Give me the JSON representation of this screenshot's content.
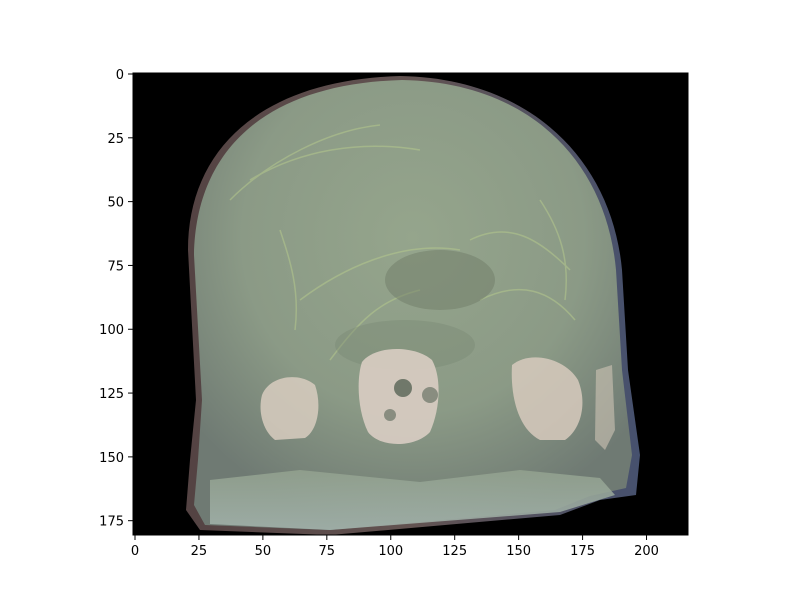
{
  "image": {
    "description_name": "volume-rendered-head-ct",
    "background_color": "#000000",
    "tissue_color": "#8d9a86",
    "bone_color": "#d6cbbf"
  },
  "axes": {
    "x_ticks": [
      "0",
      "25",
      "50",
      "75",
      "100",
      "125",
      "150",
      "175",
      "200"
    ],
    "y_ticks": [
      "0",
      "25",
      "50",
      "75",
      "100",
      "125",
      "150",
      "175"
    ],
    "xlim": [
      0,
      217
    ],
    "ylim": [
      181,
      0
    ]
  }
}
